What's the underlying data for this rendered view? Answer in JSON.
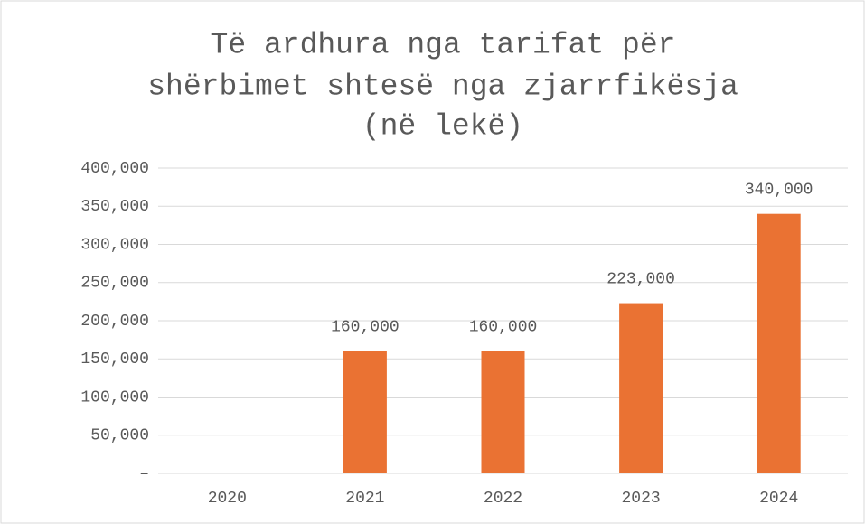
{
  "chart_data": {
    "type": "bar",
    "title": [
      "Të ardhura nga tarifat për",
      "shërbimet shtesë nga zjarrfikësja",
      "(në lekë)"
    ],
    "categories": [
      "2020",
      "2021",
      "2022",
      "2023",
      "2024"
    ],
    "values": [
      null,
      160000,
      160000,
      223000,
      340000
    ],
    "value_labels": [
      null,
      "160,000",
      "160,000",
      "223,000",
      "340,000"
    ],
    "color": "#ea7233",
    "ylim": [
      0,
      400000
    ],
    "yticks": [
      {
        "value": 0,
        "label": "–"
      },
      {
        "value": 50000,
        "label": "50,000"
      },
      {
        "value": 100000,
        "label": "100,000"
      },
      {
        "value": 150000,
        "label": "150,000"
      },
      {
        "value": 200000,
        "label": "200,000"
      },
      {
        "value": 250000,
        "label": "250,000"
      },
      {
        "value": 300000,
        "label": "300,000"
      },
      {
        "value": 350000,
        "label": "350,000"
      },
      {
        "value": 400000,
        "label": "400,000"
      }
    ],
    "grid": true
  }
}
